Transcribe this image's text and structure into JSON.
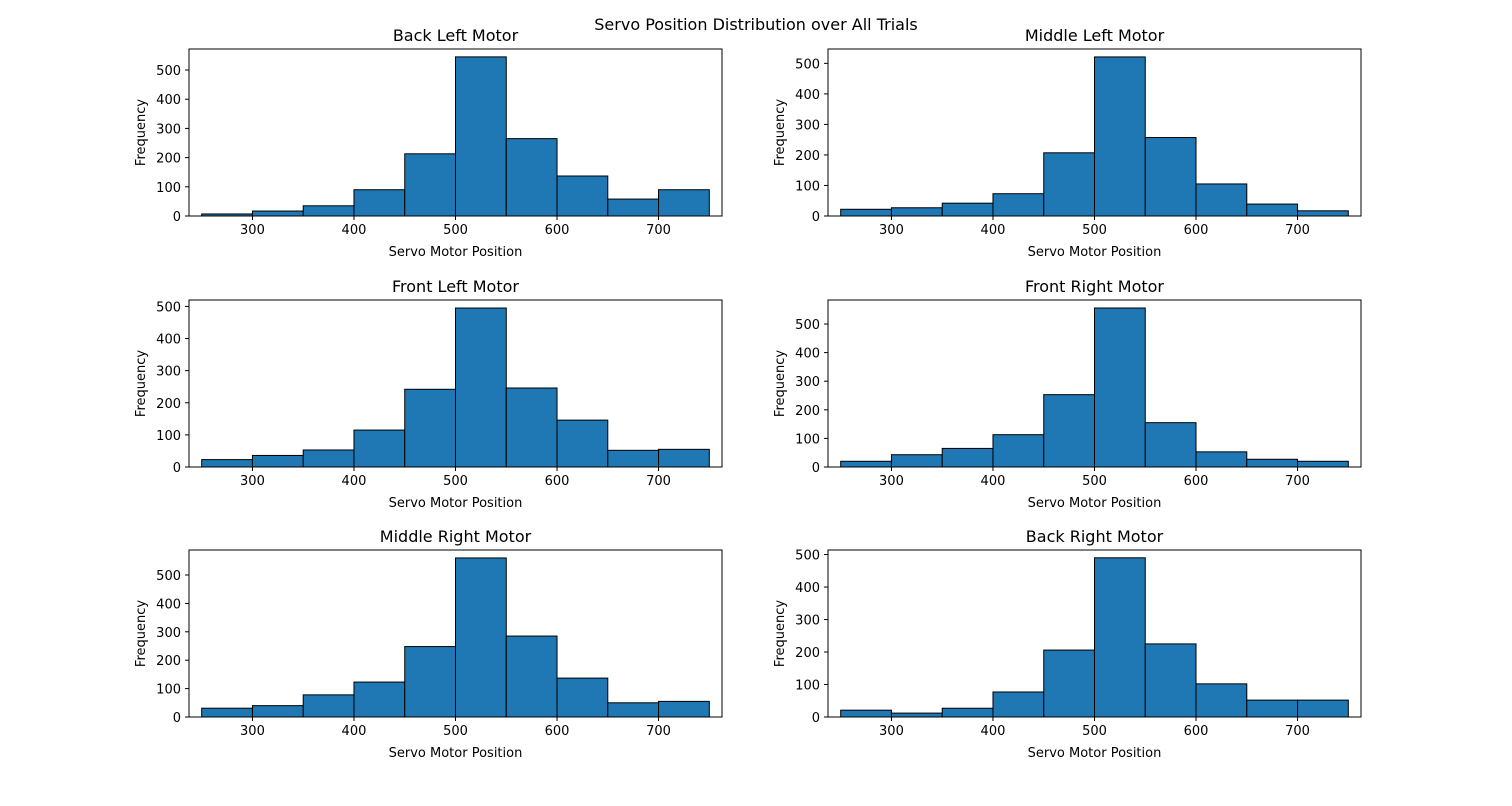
{
  "figure": {
    "suptitle": "Servo Position Distribution over All Trials",
    "bar_color": "#1f77b4",
    "edge_color": "#000000"
  },
  "chart_data": [
    {
      "type": "bar",
      "title": "Back Left Motor",
      "xlabel": "Servo Motor Position",
      "ylabel": "Frequency",
      "bin_edges": [
        250,
        300,
        350,
        400,
        450,
        500,
        550,
        600,
        650,
        700,
        750
      ],
      "values": [
        7,
        17,
        35,
        90,
        213,
        545,
        265,
        137,
        58,
        90
      ],
      "xlim": [
        237.5,
        762.5
      ],
      "ylim": [
        0,
        572
      ],
      "xticks": [
        300,
        400,
        500,
        600,
        700
      ],
      "yticks": [
        0,
        100,
        200,
        300,
        400,
        500
      ],
      "grid": false
    },
    {
      "type": "bar",
      "title": "Middle Left Motor",
      "xlabel": "Servo Motor Position",
      "ylabel": "Frequency",
      "bin_edges": [
        250,
        300,
        350,
        400,
        450,
        500,
        550,
        600,
        650,
        700,
        750
      ],
      "values": [
        22,
        27,
        42,
        73,
        207,
        521,
        257,
        105,
        39,
        17
      ],
      "xlim": [
        237.5,
        762.5
      ],
      "ylim": [
        0,
        547
      ],
      "xticks": [
        300,
        400,
        500,
        600,
        700
      ],
      "yticks": [
        0,
        100,
        200,
        300,
        400,
        500
      ],
      "grid": false
    },
    {
      "type": "bar",
      "title": "Front Left Motor",
      "xlabel": "Servo Motor Position",
      "ylabel": "Frequency",
      "bin_edges": [
        250,
        300,
        350,
        400,
        450,
        500,
        550,
        600,
        650,
        700,
        750
      ],
      "values": [
        23,
        36,
        53,
        115,
        242,
        495,
        246,
        146,
        52,
        55
      ],
      "xlim": [
        237.5,
        762.5
      ],
      "ylim": [
        0,
        520
      ],
      "xticks": [
        300,
        400,
        500,
        600,
        700
      ],
      "yticks": [
        0,
        100,
        200,
        300,
        400,
        500
      ],
      "grid": false
    },
    {
      "type": "bar",
      "title": "Front Right Motor",
      "xlabel": "Servo Motor Position",
      "ylabel": "Frequency",
      "bin_edges": [
        250,
        300,
        350,
        400,
        450,
        500,
        550,
        600,
        650,
        700,
        750
      ],
      "values": [
        20,
        43,
        65,
        113,
        253,
        556,
        155,
        53,
        27,
        20
      ],
      "xlim": [
        237.5,
        762.5
      ],
      "ylim": [
        0,
        584
      ],
      "xticks": [
        300,
        400,
        500,
        600,
        700
      ],
      "yticks": [
        0,
        100,
        200,
        300,
        400,
        500
      ],
      "grid": false
    },
    {
      "type": "bar",
      "title": "Middle Right Motor",
      "xlabel": "Servo Motor Position",
      "ylabel": "Frequency",
      "bin_edges": [
        250,
        300,
        350,
        400,
        450,
        500,
        550,
        600,
        650,
        700,
        750
      ],
      "values": [
        31,
        40,
        78,
        123,
        248,
        560,
        285,
        137,
        50,
        55
      ],
      "xlim": [
        237.5,
        762.5
      ],
      "ylim": [
        0,
        588
      ],
      "xticks": [
        300,
        400,
        500,
        600,
        700
      ],
      "yticks": [
        0,
        100,
        200,
        300,
        400,
        500
      ],
      "grid": false
    },
    {
      "type": "bar",
      "title": "Back Right Motor",
      "xlabel": "Servo Motor Position",
      "ylabel": "Frequency",
      "bin_edges": [
        250,
        300,
        350,
        400,
        450,
        500,
        550,
        600,
        650,
        700,
        750
      ],
      "values": [
        21,
        12,
        27,
        77,
        206,
        490,
        225,
        102,
        52,
        52
      ],
      "xlim": [
        237.5,
        762.5
      ],
      "ylim": [
        0,
        514
      ],
      "xticks": [
        300,
        400,
        500,
        600,
        700
      ],
      "yticks": [
        0,
        100,
        200,
        300,
        400,
        500
      ],
      "grid": false
    }
  ]
}
